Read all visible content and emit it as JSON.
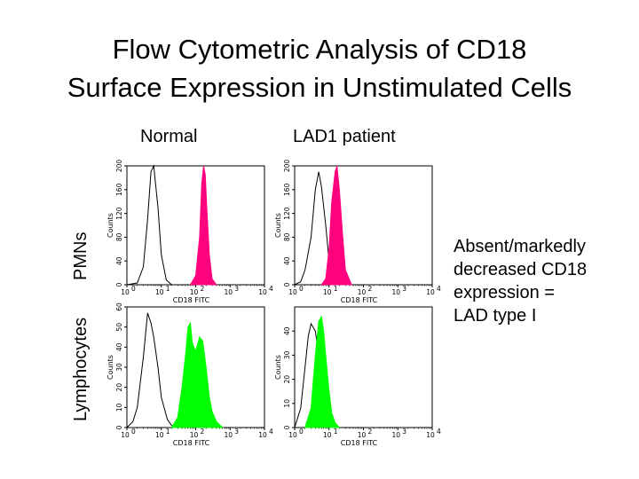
{
  "title": {
    "line1": "Flow Cytometric Analysis of CD18",
    "line2": "Surface Expression in Unstimulated Cells"
  },
  "columns": [
    "Normal",
    "LAD1 patient"
  ],
  "rows": [
    "PMNs",
    "Lymphocytes"
  ],
  "note": [
    "Absent/markedly",
    "decreased CD18",
    "expression =",
    "LAD type I"
  ],
  "colors": {
    "pmn_fill": "#ff007f",
    "lymph_fill": "#00ff00",
    "control_line": "#000000"
  },
  "chart_data": [
    {
      "type": "area",
      "row": "PMNs",
      "column": "Normal",
      "xlabel": "CD18 FITC",
      "ylabel": "Counts",
      "xscale": "log",
      "xlim": [
        1,
        10000
      ],
      "xticks": [
        "10",
        "10",
        "10",
        "10",
        "10"
      ],
      "xtick_exponents": [
        "0",
        "1",
        "2",
        "3",
        "4"
      ],
      "ylim": [
        0,
        200
      ],
      "yticks": [
        "0",
        "40",
        "80",
        "120",
        "160",
        "200"
      ],
      "fill_color": "#ff007f",
      "series": [
        {
          "role": "control",
          "style": "outline",
          "x": [
            1,
            2,
            3,
            4,
            5,
            6,
            8,
            10,
            14,
            20
          ],
          "y": [
            0,
            3,
            30,
            110,
            190,
            200,
            130,
            50,
            8,
            0
          ]
        },
        {
          "role": "stained",
          "style": "filled",
          "x": [
            70,
            100,
            130,
            150,
            170,
            190,
            210,
            250,
            300,
            400
          ],
          "y": [
            0,
            15,
            80,
            170,
            200,
            185,
            130,
            50,
            10,
            0
          ]
        }
      ]
    },
    {
      "type": "area",
      "row": "PMNs",
      "column": "LAD1 patient",
      "xlabel": "CD18 FITC",
      "ylabel": "Counts",
      "xscale": "log",
      "xlim": [
        1,
        10000
      ],
      "xticks": [
        "10",
        "10",
        "10",
        "10",
        "10"
      ],
      "xtick_exponents": [
        "0",
        "1",
        "2",
        "3",
        "4"
      ],
      "ylim": [
        0,
        200
      ],
      "yticks": [
        "0",
        "40",
        "80",
        "120",
        "160",
        "200"
      ],
      "fill_color": "#ff007f",
      "series": [
        {
          "role": "control",
          "style": "outline",
          "x": [
            1,
            1.5,
            2,
            3,
            4,
            5,
            6,
            8,
            10,
            15
          ],
          "y": [
            0,
            5,
            25,
            80,
            160,
            190,
            165,
            100,
            40,
            0
          ]
        },
        {
          "role": "stained",
          "style": "filled",
          "x": [
            6,
            8,
            10,
            12,
            15,
            17,
            20,
            25,
            30,
            45
          ],
          "y": [
            0,
            10,
            60,
            140,
            190,
            200,
            160,
            80,
            25,
            0
          ]
        }
      ]
    },
    {
      "type": "area",
      "row": "Lymphocytes",
      "column": "Normal",
      "xlabel": "CD18 FITC",
      "ylabel": "Counts",
      "xscale": "log",
      "xlim": [
        1,
        10000
      ],
      "xticks": [
        "10",
        "10",
        "10",
        "10",
        "10"
      ],
      "xtick_exponents": [
        "0",
        "1",
        "2",
        "3",
        "4"
      ],
      "ylim": [
        0,
        60
      ],
      "yticks": [
        "0",
        "10",
        "20",
        "30",
        "40",
        "50",
        "60"
      ],
      "fill_color": "#00ff00",
      "series": [
        {
          "role": "control",
          "style": "outline",
          "x": [
            1,
            1.5,
            2,
            3,
            4,
            5,
            6,
            8,
            10,
            15,
            20,
            30
          ],
          "y": [
            0,
            3,
            10,
            35,
            57,
            52,
            45,
            30,
            15,
            4,
            1,
            0
          ]
        },
        {
          "role": "stained",
          "style": "filled",
          "x": [
            20,
            30,
            40,
            50,
            60,
            70,
            80,
            100,
            130,
            160,
            200,
            250,
            300,
            400,
            600
          ],
          "y": [
            0,
            5,
            20,
            35,
            50,
            52,
            42,
            38,
            45,
            43,
            30,
            15,
            8,
            3,
            0
          ]
        }
      ]
    },
    {
      "type": "area",
      "row": "Lymphocytes",
      "column": "LAD1 patient",
      "xlabel": "CD18 FITC",
      "ylabel": "Counts",
      "xscale": "log",
      "xlim": [
        1,
        10000
      ],
      "xticks": [
        "10",
        "10",
        "10",
        "10",
        "10"
      ],
      "xtick_exponents": [
        "0",
        "1",
        "2",
        "3",
        "4"
      ],
      "ylim": [
        0,
        50
      ],
      "yticks": [
        "0",
        "10",
        "20",
        "30",
        "40"
      ],
      "fill_color": "#00ff00",
      "series": [
        {
          "role": "control",
          "style": "outline",
          "x": [
            1,
            1.5,
            2,
            2.5,
            3,
            4,
            5,
            6,
            8,
            10,
            15
          ],
          "y": [
            0,
            8,
            25,
            38,
            43,
            40,
            30,
            20,
            8,
            3,
            0
          ]
        },
        {
          "role": "stained",
          "style": "filled",
          "x": [
            2,
            3,
            4,
            5,
            6,
            7,
            8,
            10,
            12,
            15,
            20
          ],
          "y": [
            0,
            8,
            30,
            44,
            46,
            40,
            30,
            15,
            6,
            2,
            0
          ]
        }
      ]
    }
  ]
}
